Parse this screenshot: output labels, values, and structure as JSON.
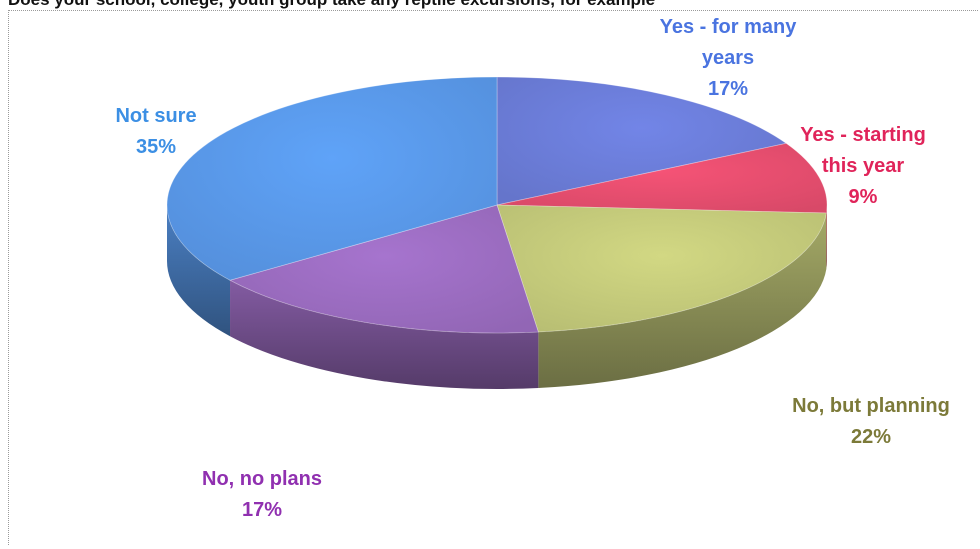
{
  "title": "Does your school, college, youth group take any reptile excursions, for example",
  "chart_data": {
    "type": "pie",
    "three_d": true,
    "slices": [
      {
        "label": [
          "Yes - for many",
          "years"
        ],
        "value": 17,
        "pct_text": "17%",
        "color": "#6a7bd6",
        "label_color": "#4a74e0"
      },
      {
        "label": [
          "Yes - starting",
          "this year"
        ],
        "value": 9,
        "pct_text": "9%",
        "color": "#e34d6d",
        "label_color": "#e0245a"
      },
      {
        "label": [
          "No, but planning"
        ],
        "value": 22,
        "pct_text": "22%",
        "color": "#c2c879",
        "label_color": "#7c7a39"
      },
      {
        "label": [
          "No, no plans"
        ],
        "value": 17,
        "pct_text": "17%",
        "color": "#9a6bbf",
        "label_color": "#9030b0"
      },
      {
        "label": [
          "Not sure"
        ],
        "value": 35,
        "pct_text": "35%",
        "color": "#5897e6",
        "label_color": "#3c8fe4"
      }
    ]
  }
}
